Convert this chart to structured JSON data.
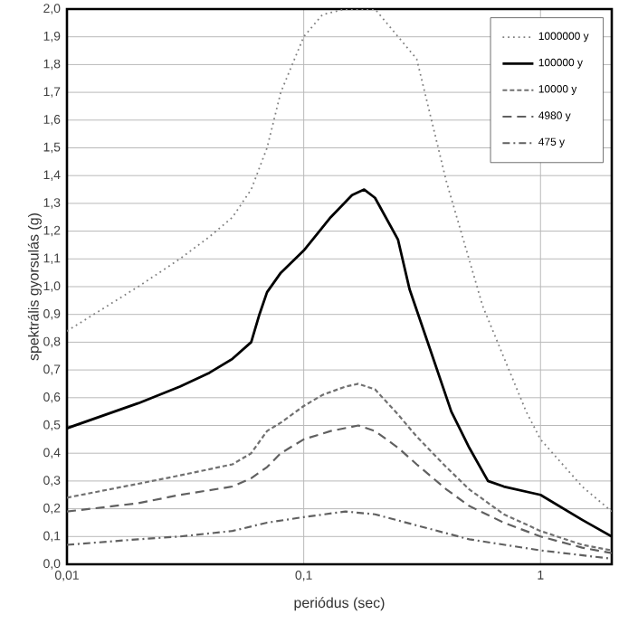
{
  "chart_data": {
    "type": "line",
    "xlabel": "periódus (sec)",
    "ylabel": "spektrális gyorsulás (g)",
    "log": "x",
    "grid": true,
    "legend": "top right",
    "marker": "none",
    "xlim": [
      0.01,
      2
    ],
    "ylim": [
      0,
      2
    ],
    "xticks": [
      {
        "value": 0.01,
        "label": "0,01"
      },
      {
        "value": 0.1,
        "label": "0,1"
      },
      1
    ],
    "yticks": [
      {
        "value": 0,
        "label": "0,0"
      },
      {
        "value": 0.1,
        "label": "0,1"
      },
      {
        "value": 0.2,
        "label": "0,2"
      },
      {
        "value": 0.3,
        "label": "0,3"
      },
      {
        "value": 0.4,
        "label": "0,4"
      },
      {
        "value": 0.5,
        "label": "0,5"
      },
      {
        "value": 0.6,
        "label": "0,6"
      },
      {
        "value": 0.7,
        "label": "0,7"
      },
      {
        "value": 0.8,
        "label": "0,8"
      },
      {
        "value": 0.9,
        "label": "0,9"
      },
      {
        "value": 1,
        "label": "1,0"
      },
      {
        "value": 1.1,
        "label": "1,1"
      },
      {
        "value": 1.2,
        "label": "1,2"
      },
      {
        "value": 1.3,
        "label": "1,3"
      },
      {
        "value": 1.4,
        "label": "1,4"
      },
      {
        "value": 1.5,
        "label": "1,5"
      },
      {
        "value": 1.6,
        "label": "1,6"
      },
      {
        "value": 1.7,
        "label": "1,7"
      },
      {
        "value": 1.8,
        "label": "1,8"
      },
      {
        "value": 1.9,
        "label": "1,9"
      },
      {
        "value": 2,
        "label": "2,0"
      }
    ],
    "series": [
      {
        "name": "1000000 y",
        "color": "#808080",
        "line_style": "dotted",
        "x": [
          0.01,
          0.02,
          0.03,
          0.04,
          0.05,
          0.06,
          0.07,
          0.08,
          0.1,
          0.12,
          0.15,
          0.2,
          0.3,
          0.4,
          0.57,
          0.87,
          1,
          1.5,
          2
        ],
        "values": [
          0.84,
          1.0,
          1.1,
          1.18,
          1.25,
          1.35,
          1.5,
          1.7,
          1.9,
          1.98,
          2.0,
          2.0,
          1.82,
          1.38,
          0.93,
          0.55,
          0.45,
          0.28,
          0.19
        ]
      },
      {
        "name": "100000 y",
        "color": "#000000",
        "line_style": "solid",
        "x": [
          0.01,
          0.02,
          0.03,
          0.04,
          0.05,
          0.06,
          0.065,
          0.07,
          0.08,
          0.1,
          0.13,
          0.16,
          0.18,
          0.2,
          0.25,
          0.28,
          0.34,
          0.42,
          0.5,
          0.6,
          0.7,
          1,
          1.5,
          2
        ],
        "values": [
          0.49,
          0.58,
          0.64,
          0.69,
          0.74,
          0.8,
          0.9,
          0.98,
          1.05,
          1.13,
          1.25,
          1.33,
          1.35,
          1.32,
          1.17,
          0.99,
          0.78,
          0.55,
          0.42,
          0.3,
          0.28,
          0.25,
          0.16,
          0.1
        ]
      },
      {
        "name": "10000 y",
        "color": "#707070",
        "line_style": "dashed",
        "x": [
          0.01,
          0.02,
          0.03,
          0.05,
          0.06,
          0.07,
          0.08,
          0.1,
          0.12,
          0.15,
          0.17,
          0.2,
          0.25,
          0.3,
          0.4,
          0.5,
          0.7,
          1,
          1.5,
          2
        ],
        "values": [
          0.24,
          0.29,
          0.32,
          0.36,
          0.4,
          0.48,
          0.51,
          0.57,
          0.61,
          0.64,
          0.65,
          0.63,
          0.54,
          0.46,
          0.35,
          0.27,
          0.18,
          0.12,
          0.07,
          0.05
        ]
      },
      {
        "name": "4980 y",
        "color": "#606060",
        "line_style": "longdashed",
        "x": [
          0.01,
          0.02,
          0.03,
          0.05,
          0.06,
          0.07,
          0.08,
          0.1,
          0.13,
          0.17,
          0.2,
          0.25,
          0.3,
          0.4,
          0.5,
          0.7,
          1,
          1.5,
          2
        ],
        "values": [
          0.19,
          0.22,
          0.25,
          0.28,
          0.31,
          0.35,
          0.4,
          0.45,
          0.48,
          0.5,
          0.48,
          0.42,
          0.36,
          0.27,
          0.21,
          0.15,
          0.1,
          0.06,
          0.04
        ]
      },
      {
        "name": "475 y",
        "color": "#606060",
        "line_style": "dashdot",
        "x": [
          0.01,
          0.02,
          0.03,
          0.05,
          0.07,
          0.1,
          0.15,
          0.2,
          0.3,
          0.5,
          1,
          2
        ],
        "values": [
          0.07,
          0.09,
          0.1,
          0.12,
          0.15,
          0.17,
          0.19,
          0.18,
          0.14,
          0.09,
          0.05,
          0.02
        ]
      }
    ]
  }
}
